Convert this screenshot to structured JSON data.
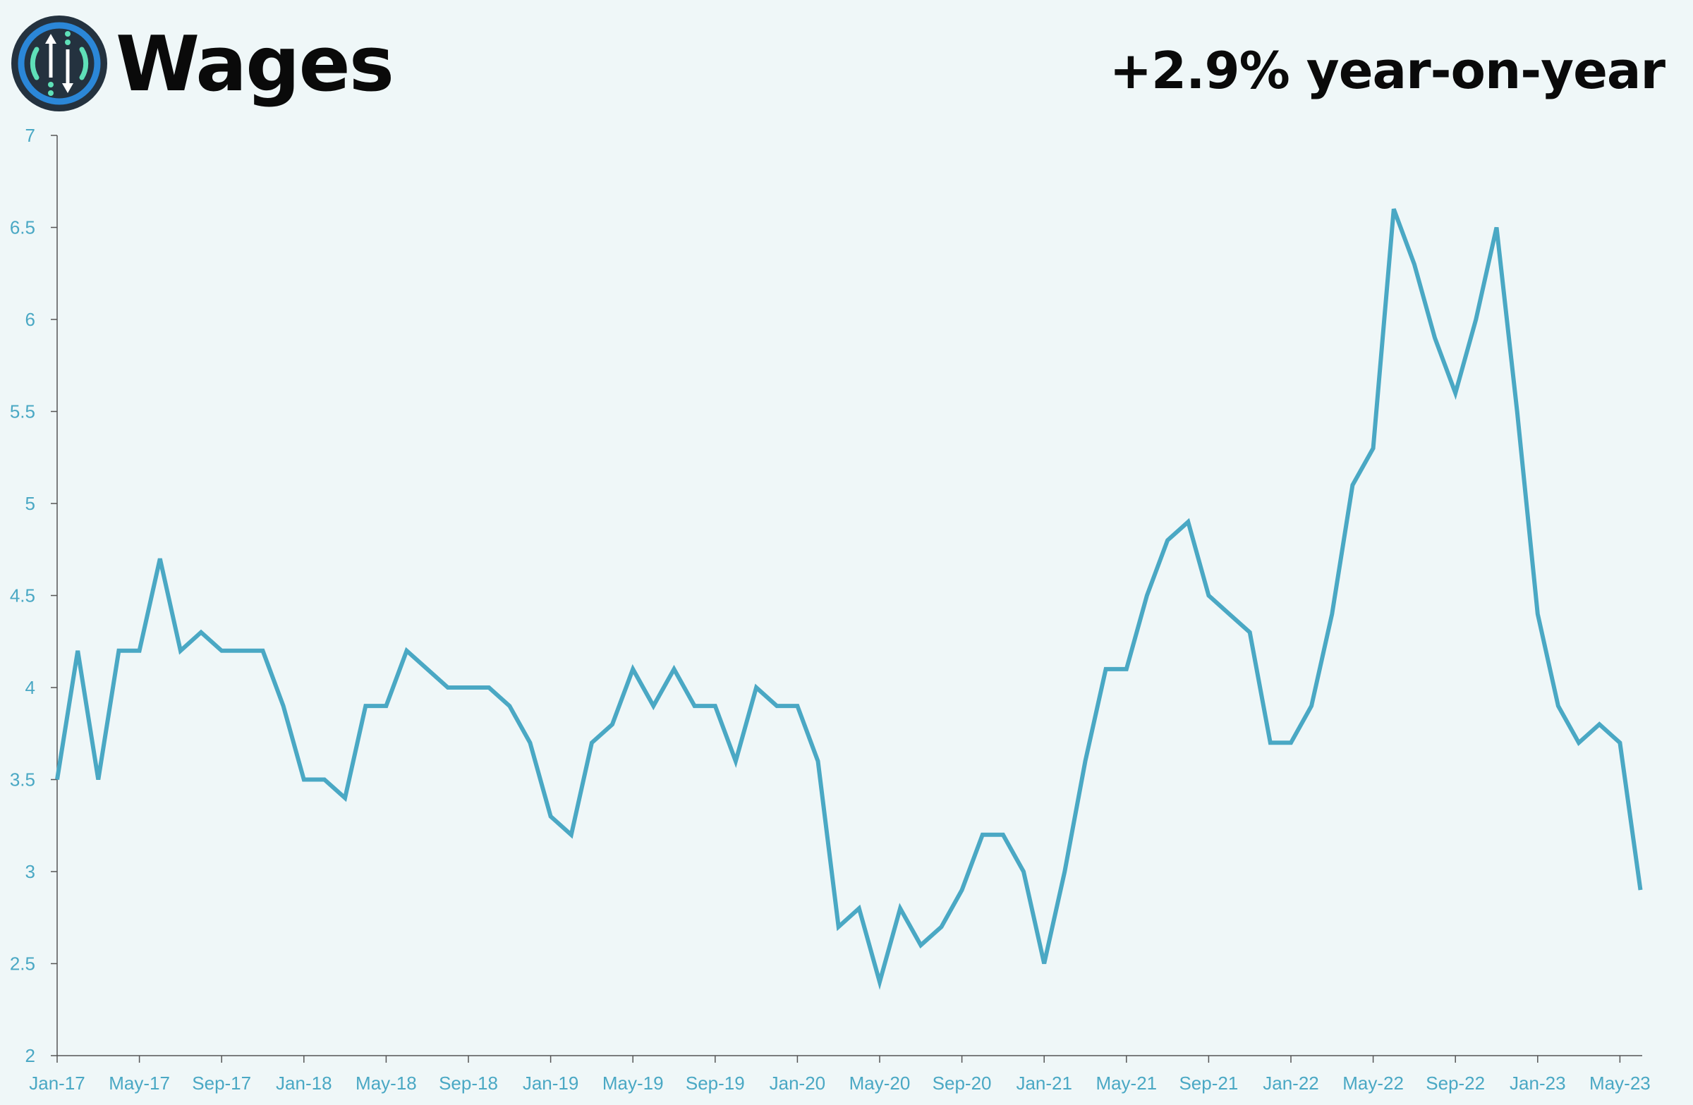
{
  "header": {
    "title": "Wages",
    "headline": "+2.9% year-on-year"
  },
  "colors": {
    "line": "#4aa8c4",
    "axis_text": "#4aa8c4",
    "axis": "#555555",
    "background": "#eff7f8",
    "logo_bg": "#24323f",
    "logo_ring": "#2b87d8",
    "logo_inner": "#5fe0b8"
  },
  "logo": {
    "icon": "up-down-arrows-icon"
  },
  "chart_data": {
    "type": "line",
    "title": "",
    "xlabel": "",
    "ylabel": "",
    "ylim": [
      2,
      7
    ],
    "yticks": [
      "2",
      "2.5",
      "3",
      "3.5",
      "4",
      "4.5",
      "5",
      "5.5",
      "6",
      "6.5",
      "7"
    ],
    "xticks": [
      "Jan-17",
      "May-17",
      "Sep-17",
      "Jan-18",
      "May-18",
      "Sep-18",
      "Jan-19",
      "May-19",
      "Sep-19",
      "Jan-20",
      "May-20",
      "Sep-20",
      "Jan-21",
      "May-21",
      "Sep-21",
      "Jan-22",
      "May-22",
      "Sep-22",
      "Jan-23",
      "May-23"
    ],
    "grid": false,
    "legend": "none",
    "series": [
      {
        "x": [
          "Jan-17",
          "Feb-17",
          "Mar-17",
          "Apr-17",
          "May-17",
          "Jun-17",
          "Jul-17",
          "Aug-17",
          "Sep-17",
          "Oct-17",
          "Nov-17",
          "Dec-17",
          "Jan-18",
          "Feb-18",
          "Mar-18",
          "Apr-18",
          "May-18",
          "Jun-18",
          "Jul-18",
          "Aug-18",
          "Sep-18",
          "Oct-18",
          "Nov-18",
          "Dec-18",
          "Jan-19",
          "Feb-19",
          "Mar-19",
          "Apr-19",
          "May-19",
          "Jun-19",
          "Jul-19",
          "Aug-19",
          "Sep-19",
          "Oct-19",
          "Nov-19",
          "Dec-19",
          "Jan-20",
          "Feb-20",
          "Mar-20",
          "Apr-20",
          "May-20",
          "Jun-20",
          "Jul-20",
          "Aug-20",
          "Sep-20",
          "Oct-20",
          "Nov-20",
          "Dec-20",
          "Jan-21",
          "Feb-21",
          "Mar-21",
          "Apr-21",
          "May-21",
          "Jun-21",
          "Jul-21",
          "Aug-21",
          "Sep-21",
          "Oct-21",
          "Nov-21",
          "Dec-21",
          "Jan-22",
          "Feb-22",
          "Mar-22",
          "Apr-22",
          "May-22",
          "Jun-22",
          "Jul-22",
          "Aug-22",
          "Sep-22",
          "Oct-22",
          "Nov-22",
          "Dec-22",
          "Jan-23",
          "Feb-23",
          "Mar-23",
          "Apr-23",
          "May-23",
          "Jun-23"
        ],
        "values": [
          3.5,
          4.2,
          3.5,
          4.2,
          4.2,
          4.7,
          4.2,
          4.3,
          4.2,
          4.2,
          4.2,
          3.9,
          3.5,
          3.5,
          3.4,
          3.9,
          3.9,
          4.2,
          4.1,
          4.0,
          4.0,
          4.0,
          3.9,
          3.7,
          3.3,
          3.2,
          3.7,
          3.8,
          4.1,
          3.9,
          4.1,
          3.9,
          3.9,
          3.6,
          4.0,
          3.9,
          3.9,
          3.6,
          2.7,
          2.8,
          2.4,
          2.8,
          2.6,
          2.7,
          2.9,
          3.2,
          3.2,
          3.0,
          2.5,
          3.0,
          3.6,
          4.1,
          4.1,
          4.5,
          4.8,
          4.9,
          4.5,
          4.4,
          4.3,
          3.7,
          3.7,
          3.9,
          4.4,
          5.1,
          5.3,
          6.6,
          6.3,
          5.9,
          5.6,
          6.0,
          6.5,
          5.5,
          4.4,
          3.9,
          3.7,
          3.8,
          3.7,
          2.9
        ]
      }
    ]
  }
}
